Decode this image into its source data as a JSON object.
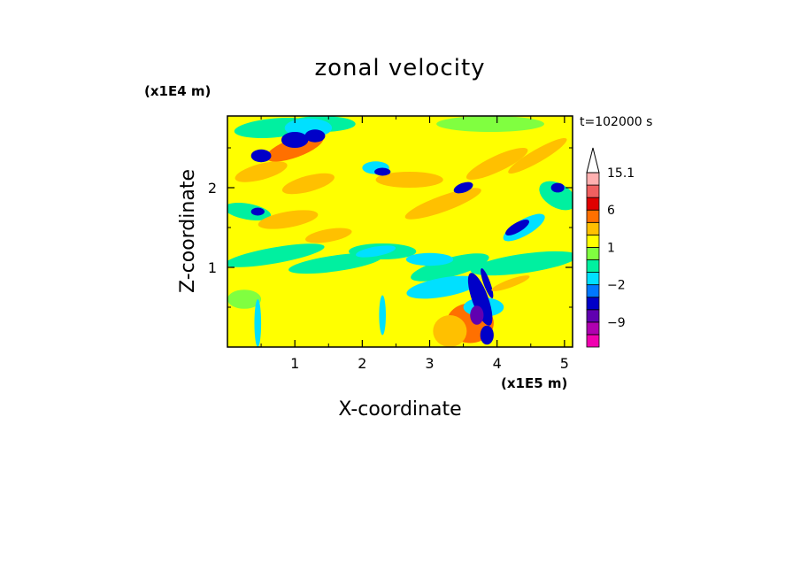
{
  "chart_data": {
    "type": "heatmap",
    "title": "zonal velocity",
    "xlabel": "X-coordinate",
    "ylabel": "Z-coordinate",
    "x_unit": "(x1E5 m)",
    "y_unit": "(x1E4 m)",
    "time_label": "t=102000 s",
    "xlim": [
      0,
      5.12
    ],
    "ylim": [
      0,
      2.9
    ],
    "x_ticks": [
      1,
      2,
      3,
      4,
      5
    ],
    "y_ticks": [
      1,
      2
    ],
    "colorbar": {
      "tick_labels": [
        {
          "value": 15.1,
          "label": "15.1"
        },
        {
          "value": 6,
          "label": "6"
        },
        {
          "value": 1,
          "label": "1"
        },
        {
          "value": -2,
          "label": "−2"
        },
        {
          "value": -9,
          "label": "−9"
        }
      ],
      "levels": [
        {
          "min": -15,
          "max": -12,
          "color": "#f000b0"
        },
        {
          "min": -12,
          "max": -9,
          "color": "#b000b0"
        },
        {
          "min": -9,
          "max": -6,
          "color": "#6000b0"
        },
        {
          "min": -6,
          "max": -3,
          "color": "#0000c8"
        },
        {
          "min": -3,
          "max": -2,
          "color": "#0078ff"
        },
        {
          "min": -2,
          "max": -1,
          "color": "#00e0ff"
        },
        {
          "min": -1,
          "max": 0,
          "color": "#00f0a0"
        },
        {
          "min": 0,
          "max": 1,
          "color": "#80ff40"
        },
        {
          "min": 1,
          "max": 2,
          "color": "#ffff00"
        },
        {
          "min": 2,
          "max": 3,
          "color": "#ffc000"
        },
        {
          "min": 3,
          "max": 6,
          "color": "#ff7000"
        },
        {
          "min": 6,
          "max": 9,
          "color": "#e00000"
        },
        {
          "min": 9,
          "max": 12,
          "color": "#f06060"
        },
        {
          "min": 12,
          "max": 15.1,
          "color": "#ffb0b0"
        }
      ],
      "extend_max": true
    }
  }
}
